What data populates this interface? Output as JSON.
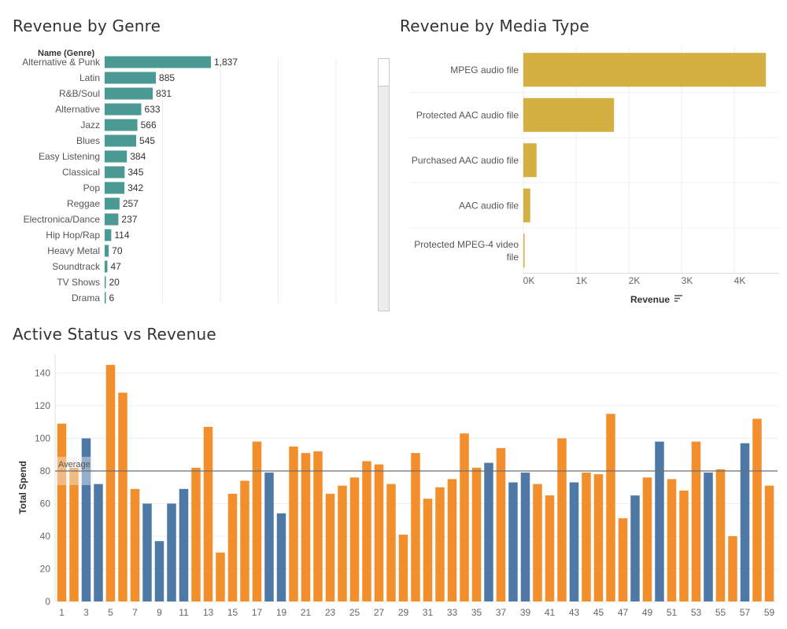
{
  "titles": {
    "genre": "Revenue by Genre",
    "media": "Revenue by Media Type",
    "active": "Active Status vs Revenue"
  },
  "colors": {
    "teal": "#4a9a93",
    "gold": "#d4b043",
    "blue": "#4e79a7",
    "orange": "#f28e2b",
    "grid": "#ececec",
    "axis_text": "#666666",
    "average_line": "#6e6e6e"
  },
  "chart_data": [
    {
      "type": "bar",
      "orientation": "horizontal",
      "title": "Revenue by Genre",
      "header_label": "Name (Genre)",
      "categories": [
        "Alternative & Punk",
        "Latin",
        "R&B/Soul",
        "Alternative",
        "Jazz",
        "Blues",
        "Easy Listening",
        "Classical",
        "Pop",
        "Reggae",
        "Electronica/Dance",
        "Hip Hop/Rap",
        "Heavy Metal",
        "Soundtrack",
        "TV Shows",
        "Drama"
      ],
      "values": [
        1837,
        885,
        831,
        633,
        566,
        545,
        384,
        345,
        342,
        257,
        237,
        114,
        70,
        47,
        20,
        6
      ],
      "value_labels": [
        "1,837",
        "885",
        "831",
        "633",
        "566",
        "545",
        "384",
        "345",
        "342",
        "257",
        "237",
        "114",
        "70",
        "47",
        "20",
        "6"
      ],
      "xlim": [
        0,
        2400
      ],
      "grid": true,
      "scrollbar": true
    },
    {
      "type": "bar",
      "orientation": "horizontal",
      "title": "Revenue by Media Type",
      "categories": [
        "MPEG audio file",
        "Protected AAC audio file",
        "Purchased AAC audio file",
        "AAC audio file",
        "Protected MPEG-4 video file"
      ],
      "category_lines": [
        [
          "MPEG audio file"
        ],
        [
          "Protected AAC audio file"
        ],
        [
          "Purchased AAC audio file"
        ],
        [
          "AAC audio file"
        ],
        [
          "Protected MPEG-4 video",
          "file"
        ]
      ],
      "values": [
        4600,
        1720,
        250,
        130,
        10
      ],
      "xlabel": "Revenue",
      "xticks": [
        0,
        1000,
        2000,
        3000,
        4000
      ],
      "xtick_labels": [
        "0K",
        "1K",
        "2K",
        "3K",
        "4K"
      ],
      "xlim": [
        0,
        4800
      ],
      "grid": true
    },
    {
      "type": "bar",
      "title": "Active Status vs Revenue",
      "ylabel": "Total Spend",
      "ylim": [
        0,
        150
      ],
      "yticks": [
        0,
        20,
        40,
        60,
        80,
        100,
        120,
        140
      ],
      "x": [
        1,
        2,
        3,
        4,
        5,
        6,
        7,
        8,
        9,
        10,
        11,
        12,
        13,
        14,
        15,
        16,
        17,
        18,
        19,
        20,
        21,
        22,
        23,
        24,
        25,
        26,
        27,
        28,
        29,
        30,
        31,
        32,
        33,
        34,
        35,
        36,
        37,
        38,
        39,
        40,
        41,
        42,
        43,
        44,
        45,
        46,
        47,
        48,
        49,
        50,
        51,
        52,
        53,
        54,
        55,
        56,
        57,
        58,
        59
      ],
      "xtick_labels": [
        "1",
        "3",
        "5",
        "7",
        "9",
        "11",
        "13",
        "15",
        "17",
        "19",
        "21",
        "23",
        "25",
        "27",
        "29",
        "31",
        "33",
        "35",
        "37",
        "39",
        "41",
        "43",
        "45",
        "47",
        "49",
        "51",
        "53",
        "55",
        "57",
        "59"
      ],
      "values": [
        109,
        82,
        100,
        72,
        145,
        128,
        69,
        60,
        37,
        60,
        69,
        82,
        107,
        30,
        66,
        74,
        98,
        79,
        54,
        95,
        91,
        92,
        66,
        71,
        76,
        86,
        84,
        72,
        41,
        91,
        63,
        70,
        75,
        103,
        82,
        85,
        94,
        73,
        79,
        72,
        65,
        100,
        73,
        79,
        78,
        115,
        51,
        65,
        76,
        98,
        75,
        68,
        98,
        79,
        81,
        40,
        97,
        112,
        71
      ],
      "status": [
        "orange",
        "orange",
        "blue",
        "blue",
        "orange",
        "orange",
        "orange",
        "blue",
        "blue",
        "blue",
        "blue",
        "orange",
        "orange",
        "orange",
        "orange",
        "orange",
        "orange",
        "blue",
        "blue",
        "orange",
        "orange",
        "orange",
        "orange",
        "orange",
        "orange",
        "orange",
        "orange",
        "orange",
        "orange",
        "orange",
        "orange",
        "orange",
        "orange",
        "orange",
        "orange",
        "blue",
        "orange",
        "blue",
        "blue",
        "orange",
        "orange",
        "orange",
        "blue",
        "orange",
        "orange",
        "orange",
        "orange",
        "blue",
        "orange",
        "blue",
        "orange",
        "orange",
        "orange",
        "blue",
        "orange",
        "orange",
        "blue",
        "orange",
        "orange"
      ],
      "average": 80,
      "average_label": "Average",
      "grid": true
    }
  ]
}
